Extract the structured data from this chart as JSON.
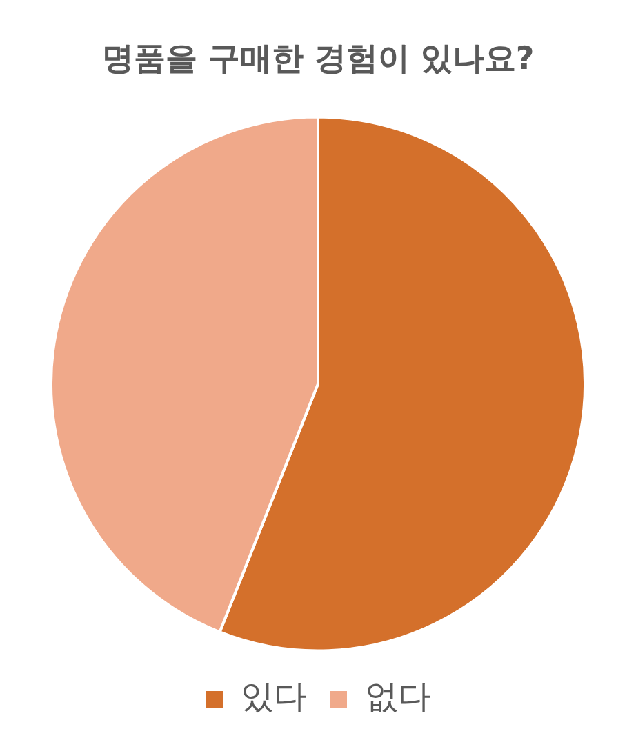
{
  "chart_data": {
    "type": "pie",
    "title": "명품을 구매한 경험이 있나요?",
    "categories": [
      "있다",
      "없다"
    ],
    "values": [
      56,
      44
    ],
    "colors": [
      "#d4702b",
      "#f0a98a"
    ],
    "legend": "bottom"
  }
}
